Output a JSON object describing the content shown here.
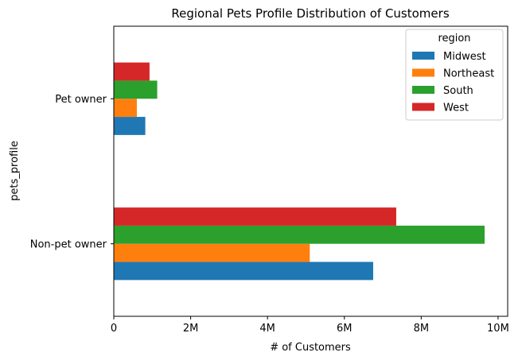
{
  "chart_data": {
    "type": "bar",
    "orientation": "horizontal",
    "title": "Regional Pets Profile Distribution of Customers",
    "xlabel": "# of Customers",
    "ylabel": "pets_profile",
    "categories": [
      "Non-pet owner",
      "Pet owner"
    ],
    "series": [
      {
        "name": "Midwest",
        "color": "#1f77b4",
        "values": [
          6750000,
          820000
        ]
      },
      {
        "name": "Northeast",
        "color": "#ff7f0e",
        "values": [
          5100000,
          600000
        ]
      },
      {
        "name": "South",
        "color": "#2ca02c",
        "values": [
          9650000,
          1130000
        ]
      },
      {
        "name": "West",
        "color": "#d62728",
        "values": [
          7350000,
          930000
        ]
      }
    ],
    "xlim": [
      0,
      10250000
    ],
    "xticks": [
      0,
      2000000,
      4000000,
      6000000,
      8000000,
      10000000
    ],
    "xtick_labels": [
      "0",
      "2M",
      "4M",
      "6M",
      "8M",
      "10M"
    ],
    "legend": {
      "title": "region",
      "placement": "top-right"
    },
    "grid": false
  }
}
